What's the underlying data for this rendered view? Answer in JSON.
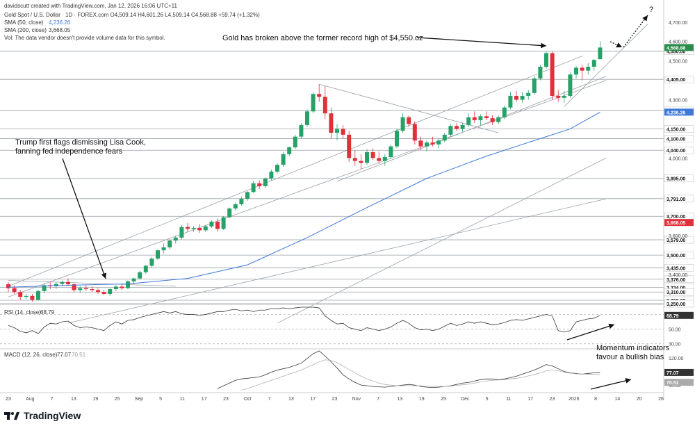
{
  "header": {
    "creator": "davidscutt created with TradingView.com, Jan 12, 2026 16:06 UTC+11",
    "symbol_line": "Gold Spot / U.S. Dollar · 1D · FOREX.com  O4,509.14  H4,601.26  L4,509.14  C4,568.88  +59.74 (+1.32%)",
    "sma50_label": "SMA (50, close)",
    "sma50_value": "4,236.26",
    "sma200_label": "SMA (200, close)",
    "sma200_value": "3,668.05",
    "vol_note": "Vol: The data vendor doesn't provide volume data for this symbol."
  },
  "annotations": {
    "gold_breakout": "Gold has broken above the former record high of $4,550.oz",
    "trump_line1": "Trump first flags dismissing Lisa Cook,",
    "trump_line2": "fanning fed independence fears",
    "momentum_line1": "Momentum indicators",
    "momentum_line2": "favour a bullish bias",
    "question_mark": "?"
  },
  "rsi_header": {
    "label": "RSI (14, close)",
    "value": "68.79"
  },
  "macd_header": {
    "label": "MACD (12, 26, close)",
    "value1": "77.07",
    "value2": "70.51"
  },
  "footer": {
    "brand": "TradingView"
  },
  "colors": {
    "up": "#26a269",
    "down": "#e0303a",
    "sma50": "#3c78d8",
    "level": "#9aa0a6",
    "trend": "#9aa0a6",
    "indicator": "#333333",
    "signal": "#b0b0b0",
    "price_badge": "#2a8c4a",
    "sma200_badge": "#e0303a",
    "sma50_badge": "#3c78d8"
  },
  "chart_data": [
    {
      "type": "candlestick",
      "title": "Gold Spot / U.S. Dollar · 1D · FOREX.com",
      "x_tick_labels": [
        "23",
        "Aug",
        "7",
        "13",
        "19",
        "25",
        "Sep",
        "5",
        "11",
        "17",
        "23",
        "Oct",
        "7",
        "13",
        "17",
        "23",
        "Nov",
        "7",
        "13",
        "19",
        "25",
        "Dec",
        "5",
        "11",
        "17",
        "23",
        "2026",
        "8",
        "14",
        "20",
        "26"
      ],
      "y_tick_labels": [
        4700,
        4600,
        4500,
        4300,
        4000,
        3600,
        3400
      ],
      "ylim": [
        3250,
        4760
      ],
      "price_levels": [
        4550,
        4405,
        4245,
        4150,
        4100,
        4040,
        3895,
        3791,
        3700,
        3579,
        3500,
        3435,
        3376,
        3334,
        3310,
        3268,
        3250
      ],
      "current_price": 4568.88,
      "sma200_value": 3668.05,
      "sma50_value": 4236.26,
      "ohlc": [
        [
          3350,
          3360,
          3310,
          3330
        ],
        [
          3330,
          3345,
          3300,
          3310
        ],
        [
          3310,
          3320,
          3270,
          3285
        ],
        [
          3285,
          3300,
          3275,
          3290
        ],
        [
          3290,
          3300,
          3260,
          3270
        ],
        [
          3270,
          3320,
          3265,
          3315
        ],
        [
          3315,
          3355,
          3305,
          3345
        ],
        [
          3345,
          3362,
          3325,
          3340
        ],
        [
          3340,
          3360,
          3325,
          3352
        ],
        [
          3352,
          3370,
          3340,
          3362
        ],
        [
          3362,
          3380,
          3340,
          3350
        ],
        [
          3350,
          3355,
          3310,
          3320
        ],
        [
          3320,
          3340,
          3305,
          3330
        ],
        [
          3330,
          3345,
          3315,
          3325
        ],
        [
          3325,
          3340,
          3312,
          3320
        ],
        [
          3320,
          3330,
          3300,
          3310
        ],
        [
          3310,
          3320,
          3295,
          3300
        ],
        [
          3300,
          3330,
          3290,
          3325
        ],
        [
          3325,
          3345,
          3315,
          3338
        ],
        [
          3338,
          3352,
          3320,
          3330
        ],
        [
          3330,
          3370,
          3325,
          3365
        ],
        [
          3365,
          3385,
          3350,
          3380
        ],
        [
          3380,
          3420,
          3375,
          3412
        ],
        [
          3412,
          3450,
          3405,
          3445
        ],
        [
          3445,
          3490,
          3435,
          3482
        ],
        [
          3482,
          3530,
          3475,
          3525
        ],
        [
          3525,
          3560,
          3510,
          3540
        ],
        [
          3540,
          3580,
          3530,
          3575
        ],
        [
          3575,
          3600,
          3560,
          3590
        ],
        [
          3590,
          3655,
          3580,
          3645
        ],
        [
          3645,
          3665,
          3620,
          3635
        ],
        [
          3635,
          3650,
          3620,
          3640
        ],
        [
          3640,
          3660,
          3615,
          3628
        ],
        [
          3628,
          3655,
          3620,
          3648
        ],
        [
          3648,
          3680,
          3640,
          3672
        ],
        [
          3672,
          3690,
          3620,
          3635
        ],
        [
          3635,
          3700,
          3630,
          3695
        ],
        [
          3695,
          3745,
          3690,
          3740
        ],
        [
          3740,
          3770,
          3730,
          3762
        ],
        [
          3762,
          3800,
          3755,
          3790
        ],
        [
          3790,
          3830,
          3780,
          3825
        ],
        [
          3825,
          3880,
          3820,
          3870
        ],
        [
          3870,
          3885,
          3840,
          3855
        ],
        [
          3855,
          3900,
          3845,
          3895
        ],
        [
          3895,
          3940,
          3885,
          3930
        ],
        [
          3930,
          3975,
          3920,
          3965
        ],
        [
          3965,
          4030,
          3955,
          4020
        ],
        [
          4020,
          4060,
          4010,
          4055
        ],
        [
          4055,
          4120,
          4045,
          4110
        ],
        [
          4110,
          4180,
          4100,
          4170
        ],
        [
          4170,
          4250,
          4160,
          4240
        ],
        [
          4240,
          4340,
          4230,
          4330
        ],
        [
          4330,
          4380,
          4290,
          4315
        ],
        [
          4315,
          4370,
          4200,
          4230
        ],
        [
          4230,
          4260,
          4100,
          4130
        ],
        [
          4130,
          4175,
          4090,
          4150
        ],
        [
          4150,
          4170,
          4100,
          4120
        ],
        [
          4120,
          4140,
          3980,
          4000
        ],
        [
          4000,
          4040,
          3960,
          3985
        ],
        [
          3985,
          4020,
          3940,
          3975
        ],
        [
          3975,
          4045,
          3965,
          4030
        ],
        [
          4030,
          4050,
          3990,
          4000
        ],
        [
          4000,
          4035,
          3970,
          3985
        ],
        [
          3985,
          4020,
          3960,
          4005
        ],
        [
          4005,
          4070,
          3995,
          4060
        ],
        [
          4060,
          4150,
          4050,
          4140
        ],
        [
          4140,
          4230,
          4130,
          4210
        ],
        [
          4210,
          4220,
          4160,
          4175
        ],
        [
          4175,
          4190,
          4070,
          4090
        ],
        [
          4090,
          4110,
          4040,
          4060
        ],
        [
          4060,
          4090,
          4035,
          4080
        ],
        [
          4080,
          4110,
          4060,
          4070
        ],
        [
          4070,
          4100,
          4050,
          4090
        ],
        [
          4090,
          4130,
          4080,
          4120
        ],
        [
          4120,
          4175,
          4110,
          4165
        ],
        [
          4165,
          4180,
          4140,
          4150
        ],
        [
          4150,
          4180,
          4135,
          4170
        ],
        [
          4170,
          4230,
          4160,
          4210
        ],
        [
          4210,
          4240,
          4180,
          4195
        ],
        [
          4195,
          4225,
          4170,
          4215
        ],
        [
          4215,
          4240,
          4195,
          4205
        ],
        [
          4205,
          4220,
          4170,
          4185
        ],
        [
          4185,
          4220,
          4175,
          4210
        ],
        [
          4210,
          4270,
          4200,
          4260
        ],
        [
          4260,
          4340,
          4250,
          4320
        ],
        [
          4320,
          4345,
          4290,
          4300
        ],
        [
          4300,
          4340,
          4285,
          4320
        ],
        [
          4320,
          4350,
          4300,
          4335
        ],
        [
          4335,
          4420,
          4325,
          4410
        ],
        [
          4410,
          4480,
          4400,
          4470
        ],
        [
          4470,
          4550,
          4460,
          4540
        ],
        [
          4540,
          4550,
          4300,
          4320
        ],
        [
          4320,
          4350,
          4290,
          4310
        ],
        [
          4310,
          4345,
          4285,
          4320
        ],
        [
          4320,
          4440,
          4310,
          4430
        ],
        [
          4430,
          4475,
          4410,
          4465
        ],
        [
          4465,
          4480,
          4400,
          4450
        ],
        [
          4450,
          4490,
          4430,
          4470
        ],
        [
          4470,
          4510,
          4450,
          4505
        ],
        [
          4509,
          4601,
          4509,
          4569
        ]
      ],
      "sma50": [
        [
          0,
          3335
        ],
        [
          10,
          3345
        ],
        [
          20,
          3352
        ],
        [
          30,
          3380
        ],
        [
          40,
          3450
        ],
        [
          50,
          3590
        ],
        [
          60,
          3745
        ],
        [
          70,
          3895
        ],
        [
          80,
          4010
        ],
        [
          90,
          4110
        ],
        [
          94,
          4150
        ],
        [
          99,
          4236
        ]
      ],
      "sma200_note": "below visible range"
    },
    {
      "type": "line",
      "title": "RSI (14, close)",
      "ylim": [
        25,
        80
      ],
      "values": [
        55,
        52,
        47,
        45,
        48,
        44,
        53,
        58,
        57,
        60,
        61,
        55,
        52,
        53,
        52,
        50,
        48,
        55,
        60,
        57,
        62,
        63,
        66,
        68,
        70,
        72,
        74,
        72,
        74,
        71,
        70,
        70,
        69,
        70,
        72,
        74,
        74,
        76,
        77,
        75,
        76,
        74,
        76,
        76,
        78,
        78,
        79,
        78,
        79,
        80,
        80,
        80,
        79,
        68,
        62,
        57,
        58,
        52,
        50,
        48,
        52,
        50,
        48,
        50,
        53,
        58,
        62,
        58,
        52,
        49,
        50,
        48,
        50,
        54,
        58,
        55,
        57,
        60,
        58,
        60,
        58,
        56,
        57,
        59,
        62,
        63,
        62,
        64,
        66,
        68,
        70,
        68,
        48,
        46,
        48,
        60,
        62,
        64,
        65,
        68.79
      ],
      "levels": [
        70,
        50,
        30
      ]
    },
    {
      "type": "line",
      "title": "MACD (12, 26, close)",
      "ylim": [
        20,
        140
      ],
      "y_tick_labels": [
        120,
        80,
        40
      ],
      "series": [
        {
          "name": "MACD",
          "values": [
            null,
            null,
            null,
            null,
            null,
            null,
            null,
            null,
            null,
            null,
            null,
            null,
            null,
            null,
            null,
            null,
            null,
            null,
            null,
            null,
            null,
            null,
            null,
            null,
            null,
            null,
            null,
            null,
            null,
            null,
            null,
            null,
            null,
            null,
            null,
            30,
            38,
            46,
            54,
            58,
            60,
            62,
            64,
            70,
            78,
            84,
            88,
            92,
            98,
            104,
            118,
            132,
            140,
            125,
            108,
            90,
            70,
            58,
            48,
            40,
            38,
            36,
            35,
            34,
            36,
            38,
            40,
            42,
            40,
            36,
            34,
            33,
            34,
            36,
            38,
            42,
            46,
            48,
            52,
            56,
            58,
            58,
            56,
            58,
            62,
            66,
            72,
            78,
            84,
            92,
            100,
            96,
            88,
            80,
            76,
            74,
            72,
            74,
            76,
            77.07
          ]
        },
        {
          "name": "Signal",
          "values": [
            null,
            null,
            null,
            null,
            null,
            null,
            null,
            null,
            null,
            null,
            null,
            null,
            null,
            null,
            null,
            null,
            null,
            null,
            null,
            null,
            null,
            null,
            null,
            null,
            null,
            null,
            null,
            null,
            null,
            null,
            null,
            null,
            null,
            null,
            null,
            null,
            null,
            null,
            null,
            25,
            30,
            36,
            42,
            48,
            54,
            60,
            66,
            72,
            78,
            84,
            92,
            100,
            108,
            114,
            112,
            106,
            96,
            86,
            76,
            66,
            58,
            52,
            46,
            42,
            40,
            38,
            38,
            38,
            38,
            38,
            37,
            36,
            36,
            36,
            37,
            39,
            41,
            43,
            46,
            49,
            52,
            54,
            55,
            56,
            58,
            60,
            63,
            67,
            71,
            76,
            82,
            84,
            82,
            78,
            75,
            73,
            72,
            72,
            72,
            70.51
          ]
        }
      ]
    }
  ]
}
